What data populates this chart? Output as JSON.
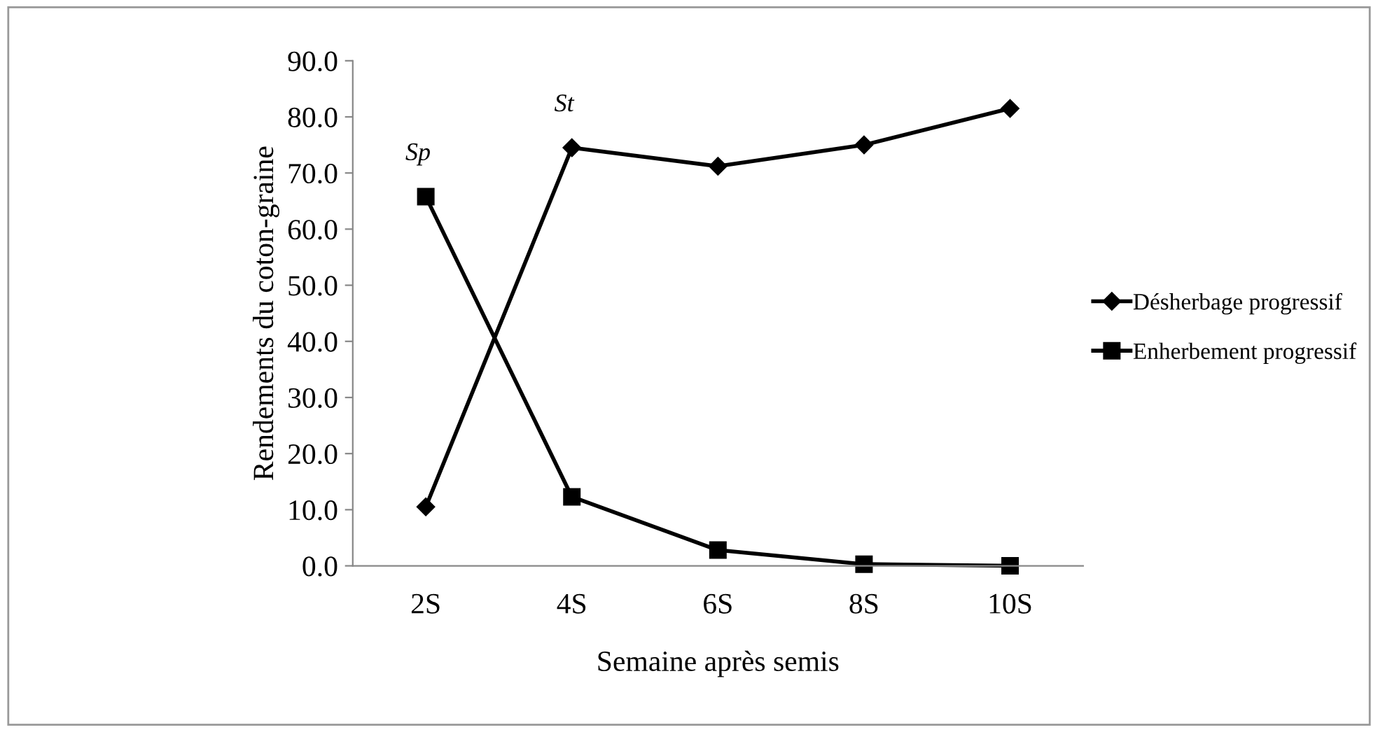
{
  "chart_data": {
    "type": "line",
    "xlabel": "Semaine après semis",
    "ylabel": "Rendements du coton-graine",
    "categories": [
      "2S",
      "4S",
      "6S",
      "8S",
      "10S"
    ],
    "series": [
      {
        "name": "Désherbage progressif",
        "color": "#000000",
        "marker": "diamond",
        "values": [
          10.5,
          74.5,
          71.2,
          75.0,
          81.5
        ]
      },
      {
        "name": "Enherbement progressif",
        "color": "#000000",
        "marker": "square",
        "values": [
          65.8,
          12.3,
          2.8,
          0.3,
          0.0
        ]
      }
    ],
    "ylim": [
      0,
      90
    ],
    "yticks": [
      {
        "value": 0,
        "label": "0.0"
      },
      {
        "value": 10,
        "label": "10.0"
      },
      {
        "value": 20,
        "label": "20.0"
      },
      {
        "value": 30,
        "label": "30.0"
      },
      {
        "value": 40,
        "label": "40.0"
      },
      {
        "value": 50,
        "label": "50.0"
      },
      {
        "value": 60,
        "label": "60.0"
      },
      {
        "value": 70,
        "label": "70.0"
      },
      {
        "value": 80,
        "label": "80.0"
      },
      {
        "value": 90,
        "label": "90.0"
      }
    ],
    "annotations": [
      "Sp",
      "St"
    ],
    "grid": false,
    "legend": "right",
    "line_style": "solid"
  }
}
